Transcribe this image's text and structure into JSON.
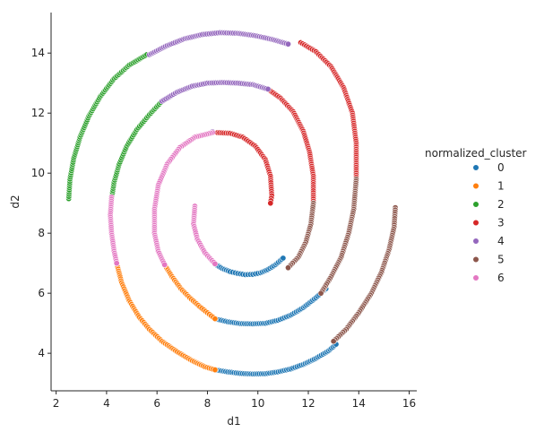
{
  "chart_data": {
    "type": "scatter",
    "xlabel": "d1",
    "ylabel": "d2",
    "xlim": [
      1.8,
      16.3
    ],
    "ylim": [
      2.75,
      15.35
    ],
    "xticks": [
      2,
      4,
      6,
      8,
      10,
      12,
      14,
      16
    ],
    "yticks": [
      4,
      6,
      8,
      10,
      12,
      14
    ],
    "grid": false,
    "legend": {
      "title": "normalized_cluster",
      "position": "right",
      "entries": [
        "0",
        "1",
        "2",
        "3",
        "4",
        "5",
        "6"
      ]
    },
    "series": [
      {
        "name": "0",
        "color": "#1f77b4",
        "points": [
          [
            8.3,
            6.97
          ],
          [
            8.6,
            6.82
          ],
          [
            8.9,
            6.72
          ],
          [
            9.2,
            6.66
          ],
          [
            9.5,
            6.62
          ],
          [
            9.8,
            6.63
          ],
          [
            10.1,
            6.68
          ],
          [
            10.4,
            6.79
          ],
          [
            10.7,
            6.95
          ],
          [
            11.0,
            7.17
          ],
          [
            8.3,
            5.15
          ],
          [
            8.8,
            5.05
          ],
          [
            9.3,
            4.99
          ],
          [
            9.8,
            4.98
          ],
          [
            10.3,
            5.0
          ],
          [
            10.8,
            5.1
          ],
          [
            11.3,
            5.27
          ],
          [
            11.8,
            5.52
          ],
          [
            12.3,
            5.85
          ],
          [
            12.7,
            6.15
          ],
          [
            8.3,
            3.45
          ],
          [
            8.8,
            3.38
          ],
          [
            9.3,
            3.33
          ],
          [
            9.8,
            3.31
          ],
          [
            10.3,
            3.32
          ],
          [
            10.8,
            3.38
          ],
          [
            11.3,
            3.48
          ],
          [
            11.8,
            3.63
          ],
          [
            12.3,
            3.83
          ],
          [
            12.8,
            4.08
          ],
          [
            13.1,
            4.3
          ]
        ]
      },
      {
        "name": "1",
        "color": "#ff7f0e",
        "points": [
          [
            6.3,
            6.95
          ],
          [
            6.6,
            6.55
          ],
          [
            6.95,
            6.15
          ],
          [
            7.3,
            5.85
          ],
          [
            7.7,
            5.55
          ],
          [
            8.0,
            5.35
          ],
          [
            8.3,
            5.15
          ],
          [
            4.4,
            7.0
          ],
          [
            4.6,
            6.35
          ],
          [
            4.9,
            5.75
          ],
          [
            5.3,
            5.2
          ],
          [
            5.7,
            4.8
          ],
          [
            6.2,
            4.4
          ],
          [
            6.8,
            4.05
          ],
          [
            7.4,
            3.75
          ],
          [
            7.9,
            3.55
          ],
          [
            8.3,
            3.45
          ]
        ]
      },
      {
        "name": "2",
        "color": "#2ca02c",
        "points": [
          [
            2.5,
            9.15
          ],
          [
            2.55,
            9.8
          ],
          [
            2.7,
            10.5
          ],
          [
            2.95,
            11.2
          ],
          [
            3.3,
            11.9
          ],
          [
            3.75,
            12.55
          ],
          [
            4.3,
            13.15
          ],
          [
            4.9,
            13.6
          ],
          [
            5.6,
            13.95
          ],
          [
            4.2,
            9.15
          ],
          [
            4.3,
            9.7
          ],
          [
            4.5,
            10.3
          ],
          [
            4.8,
            10.9
          ],
          [
            5.2,
            11.45
          ],
          [
            5.7,
            11.95
          ],
          [
            6.2,
            12.4
          ]
        ]
      },
      {
        "name": "3",
        "color": "#d62728",
        "points": [
          [
            8.4,
            11.35
          ],
          [
            8.9,
            11.33
          ],
          [
            9.4,
            11.2
          ],
          [
            9.9,
            10.9
          ],
          [
            10.3,
            10.45
          ],
          [
            10.5,
            9.9
          ],
          [
            10.55,
            9.25
          ],
          [
            10.5,
            9.0
          ],
          [
            10.4,
            12.8
          ],
          [
            10.9,
            12.5
          ],
          [
            11.4,
            12.05
          ],
          [
            11.8,
            11.4
          ],
          [
            12.05,
            10.7
          ],
          [
            12.2,
            9.9
          ],
          [
            12.2,
            9.0
          ],
          [
            11.7,
            14.35
          ],
          [
            12.3,
            14.05
          ],
          [
            12.9,
            13.55
          ],
          [
            13.4,
            12.85
          ],
          [
            13.75,
            12.0
          ],
          [
            13.9,
            11.0
          ],
          [
            13.9,
            9.8
          ]
        ]
      },
      {
        "name": "4",
        "color": "#9467bd",
        "points": [
          [
            5.7,
            13.95
          ],
          [
            6.4,
            14.25
          ],
          [
            7.1,
            14.48
          ],
          [
            7.8,
            14.62
          ],
          [
            8.5,
            14.68
          ],
          [
            9.2,
            14.66
          ],
          [
            9.9,
            14.58
          ],
          [
            10.6,
            14.45
          ],
          [
            11.2,
            14.3
          ],
          [
            6.2,
            12.4
          ],
          [
            6.8,
            12.7
          ],
          [
            7.4,
            12.9
          ],
          [
            8.0,
            13.0
          ],
          [
            8.6,
            13.02
          ],
          [
            9.2,
            13.0
          ],
          [
            9.8,
            12.95
          ],
          [
            10.4,
            12.8
          ],
          [
            8.2,
            11.38
          ]
        ]
      },
      {
        "name": "5",
        "color": "#8c564b",
        "points": [
          [
            12.2,
            9.0
          ],
          [
            12.1,
            8.3
          ],
          [
            11.9,
            7.7
          ],
          [
            11.6,
            7.2
          ],
          [
            11.2,
            6.85
          ],
          [
            13.9,
            9.8
          ],
          [
            13.8,
            8.8
          ],
          [
            13.6,
            8.0
          ],
          [
            13.3,
            7.2
          ],
          [
            12.9,
            6.55
          ],
          [
            12.5,
            6.0
          ],
          [
            15.45,
            8.85
          ],
          [
            15.4,
            8.2
          ],
          [
            15.2,
            7.45
          ],
          [
            14.9,
            6.7
          ],
          [
            14.5,
            6.0
          ],
          [
            14.0,
            5.35
          ],
          [
            13.5,
            4.8
          ],
          [
            13.0,
            4.4
          ]
        ]
      },
      {
        "name": "6",
        "color": "#e377c2",
        "points": [
          [
            7.5,
            8.9
          ],
          [
            7.45,
            8.3
          ],
          [
            7.6,
            7.8
          ],
          [
            7.9,
            7.35
          ],
          [
            8.3,
            6.98
          ],
          [
            8.2,
            11.35
          ],
          [
            7.5,
            11.2
          ],
          [
            6.9,
            10.85
          ],
          [
            6.4,
            10.3
          ],
          [
            6.05,
            9.6
          ],
          [
            5.9,
            8.8
          ],
          [
            5.9,
            8.0
          ],
          [
            6.05,
            7.4
          ],
          [
            6.3,
            6.95
          ],
          [
            4.2,
            9.2
          ],
          [
            4.15,
            8.6
          ],
          [
            4.2,
            8.0
          ],
          [
            4.3,
            7.4
          ],
          [
            4.4,
            7.0
          ]
        ]
      }
    ]
  }
}
